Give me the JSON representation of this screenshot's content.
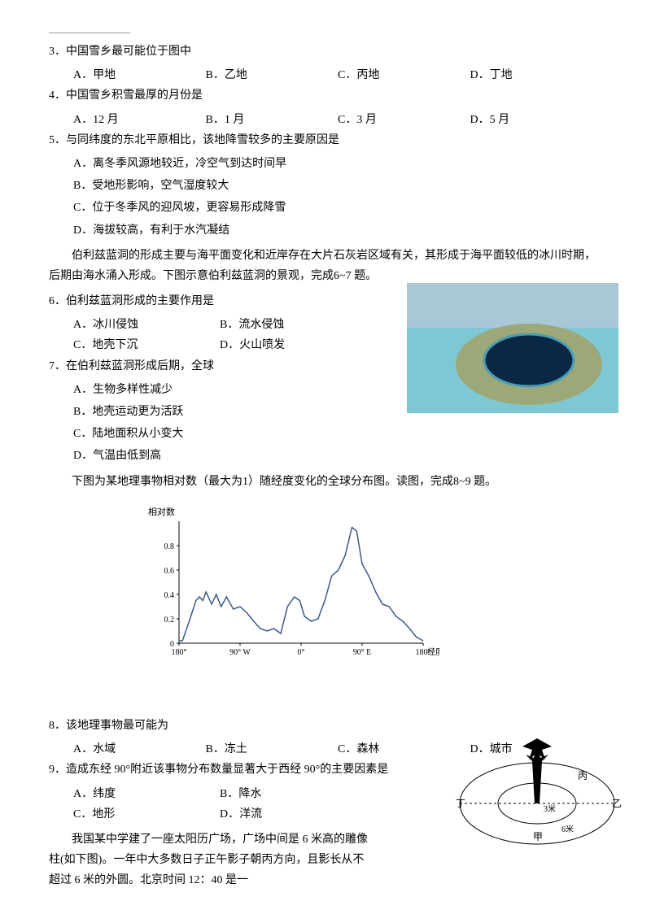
{
  "colors": {
    "text": "#000000",
    "bg": "#ffffff",
    "line": "#999999",
    "chart_line": "#3a5a8a",
    "water_light": "#7ec8d4",
    "water_dark": "#0a2845",
    "reef": "#9ca878"
  },
  "q3": {
    "text": "3．中国雪乡最可能位于图中",
    "a": "A．甲地",
    "b": "B．乙地",
    "c": "C．丙地",
    "d": "D．丁地"
  },
  "q4": {
    "text": "4．中国雪乡积雪最厚的月份是",
    "a": "A．12 月",
    "b": "B．1 月",
    "c": "C．3 月",
    "d": "D．5 月"
  },
  "q5": {
    "text": "5．与同纬度的东北平原相比，该地降雪较多的主要原因是",
    "a": "A．离冬季风源地较近，冷空气到达时间早",
    "b": "B．受地形影响，空气湿度较大",
    "c": "C．位于冬季风的迎风坡，更容易形成降雪",
    "d": "D．海拔较高，有利于水汽凝结"
  },
  "passage1": "伯利兹蓝洞的形成主要与海平面变化和近岸存在大片石灰岩区域有关，其形成于海平面较低的冰川时期，后期由海水涌入形成。下图示意伯利兹蓝洞的景观，完成6~7 题。",
  "q6": {
    "text": "6．伯利兹蓝洞形成的主要作用是",
    "a": "A．冰川侵蚀",
    "b": "B．流水侵蚀",
    "c": "C．地壳下沉",
    "d": "D．火山喷发"
  },
  "q7": {
    "text": "7．在伯利兹蓝洞形成后期，全球",
    "a": "A．生物多样性减少",
    "b": "B．地壳运动更为活跃",
    "c": "C．陆地面积从小变大",
    "d": "D．气温由低到高"
  },
  "passage2": "下图为某地理事物相对数（最大为1）随经度变化的全球分布图。读图，完成8~9 题。",
  "chart": {
    "ylabel": "相对数",
    "ymax": 1.0,
    "yticks": [
      0,
      0.2,
      0.4,
      0.6,
      0.8
    ],
    "xlabel": "经度",
    "xticks": [
      "180°",
      "90° W",
      "0°",
      "90° E",
      "180°"
    ],
    "color": "#3a5a8a",
    "data": [
      [
        0,
        0.02
      ],
      [
        5,
        0.02
      ],
      [
        15,
        0.18
      ],
      [
        25,
        0.35
      ],
      [
        30,
        0.38
      ],
      [
        35,
        0.35
      ],
      [
        40,
        0.42
      ],
      [
        48,
        0.32
      ],
      [
        55,
        0.4
      ],
      [
        62,
        0.3
      ],
      [
        70,
        0.38
      ],
      [
        80,
        0.28
      ],
      [
        90,
        0.3
      ],
      [
        100,
        0.25
      ],
      [
        110,
        0.18
      ],
      [
        120,
        0.12
      ],
      [
        130,
        0.1
      ],
      [
        140,
        0.12
      ],
      [
        150,
        0.08
      ],
      [
        160,
        0.3
      ],
      [
        170,
        0.38
      ],
      [
        178,
        0.35
      ],
      [
        185,
        0.22
      ],
      [
        195,
        0.18
      ],
      [
        205,
        0.2
      ],
      [
        215,
        0.35
      ],
      [
        225,
        0.55
      ],
      [
        235,
        0.6
      ],
      [
        245,
        0.72
      ],
      [
        255,
        0.95
      ],
      [
        262,
        0.92
      ],
      [
        270,
        0.65
      ],
      [
        280,
        0.55
      ],
      [
        290,
        0.42
      ],
      [
        300,
        0.32
      ],
      [
        310,
        0.3
      ],
      [
        320,
        0.22
      ],
      [
        330,
        0.18
      ],
      [
        340,
        0.12
      ],
      [
        350,
        0.05
      ],
      [
        360,
        0.02
      ]
    ]
  },
  "q8": {
    "text": "8．该地理事物最可能为",
    "a": "A．水域",
    "b": "B．冻土",
    "c": "C．森林",
    "d": "D．城市"
  },
  "q9": {
    "text": "9．造成东经 90°附近该事物分布数量显著大于西经 90°的主要因素是",
    "a": "A．纬度",
    "b": "B．降水",
    "c": "C．地形",
    "d": "D．洋流"
  },
  "passage3a": "我国某中学建了一座太阳历广场，广场中间是 6 米高的雕像柱(如下图)。一年中大多数日子正午影子朝丙方向，且影长从不超过 6 米的外圆。北京时间 12：40 是一",
  "compass": {
    "labels": {
      "top": "丙",
      "right": "乙",
      "bottom": "甲",
      "left": "丁"
    },
    "inner_label": "3米",
    "outer_label": "6米"
  }
}
